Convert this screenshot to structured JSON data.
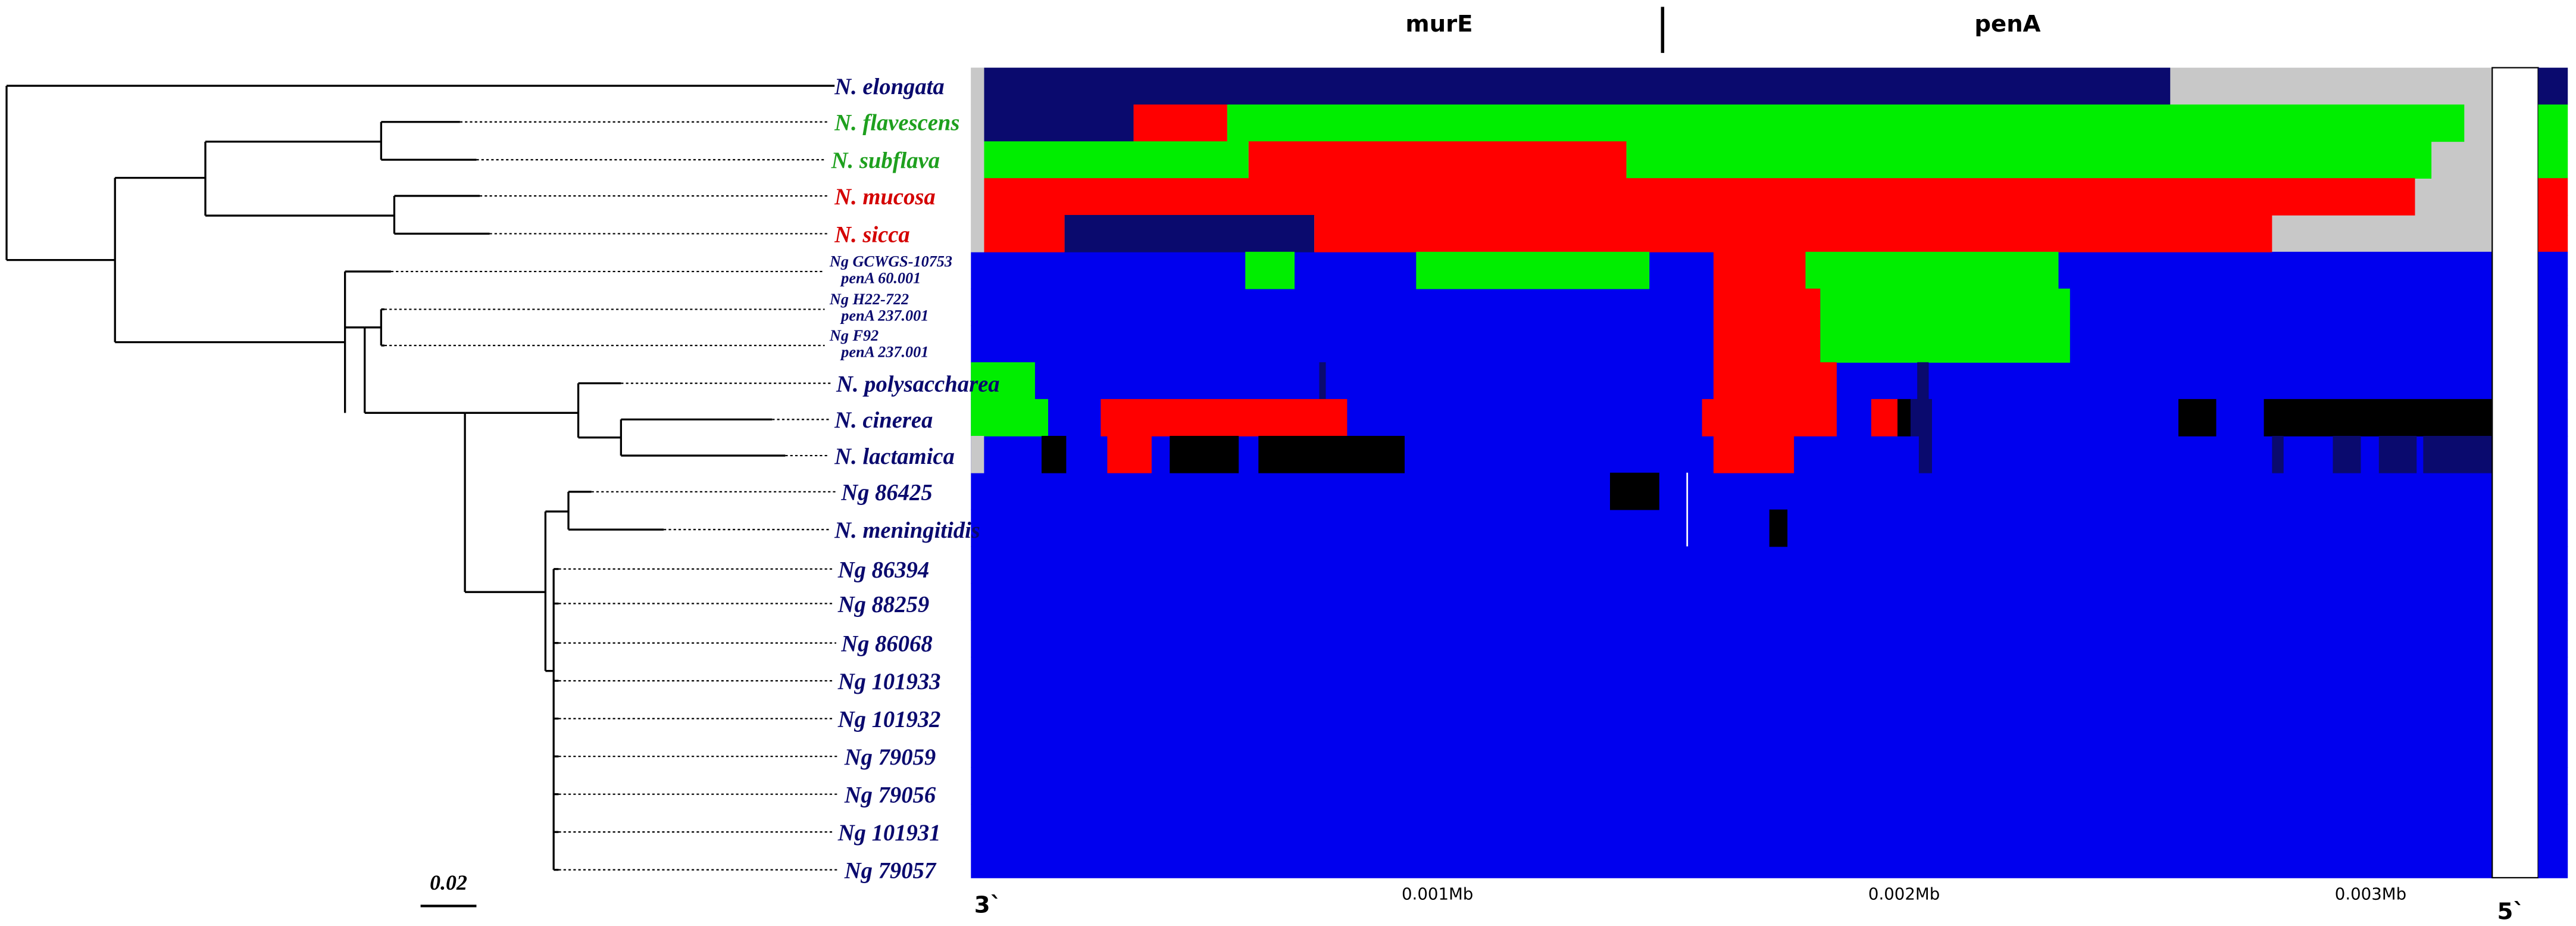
{
  "header": {
    "genes": [
      "murE",
      "penA"
    ]
  },
  "tree": {
    "taxa": [
      [
        "N. elongata"
      ],
      [
        "N. flavescens"
      ],
      [
        "N. subflava"
      ],
      [
        "N. mucosa"
      ],
      [
        "N. sicca"
      ],
      [
        "Ng GCWGS-10753",
        "penA 60.001"
      ],
      [
        "Ng H22-722",
        "penA 237.001"
      ],
      [
        "Ng F92",
        "penA 237.001"
      ],
      [
        "N. polysaccharea"
      ],
      [
        "N. cinerea"
      ],
      [
        "N. lactamica"
      ],
      [
        "Ng 86425"
      ],
      [
        "N. meningitidis"
      ],
      [
        "Ng 86394"
      ],
      [
        "Ng 88259"
      ],
      [
        "Ng 86068"
      ],
      [
        "Ng 101933"
      ],
      [
        "Ng 101932"
      ],
      [
        "Ng 79059"
      ],
      [
        "Ng 79056"
      ],
      [
        "Ng 101931"
      ],
      [
        "Ng 79057"
      ]
    ],
    "scale_label": "0.02"
  },
  "alignment": {
    "start_label": "3`",
    "end_label": "5`",
    "ticks": [
      "0.001Mb",
      "0.002Mb",
      "0.003Mb"
    ]
  }
}
